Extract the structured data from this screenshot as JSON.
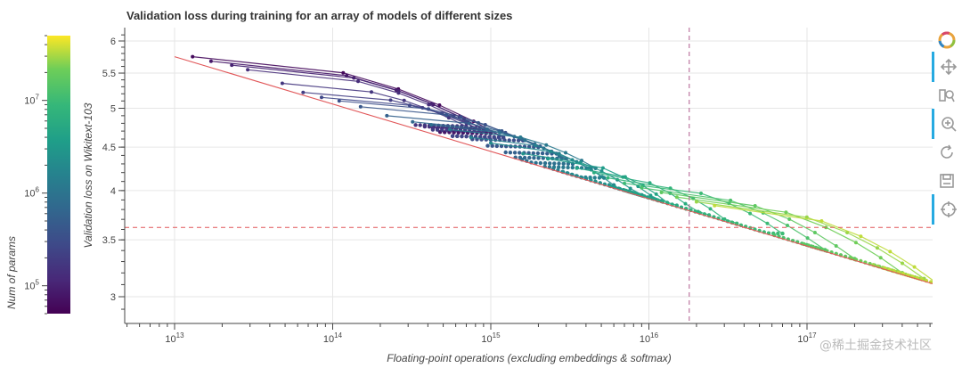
{
  "chart_data": {
    "type": "scatter",
    "title": "Validation loss during training for an array of models of different sizes",
    "xlabel": "Floating-point operations (excluding embeddings & softmax)",
    "ylabel": "Validation loss on Wikitext-103",
    "x_scale": "log",
    "y_scale": "log",
    "xlim": [
      5000000000000.0,
      7e+17
    ],
    "ylim": [
      2.8,
      6.2
    ],
    "x_tick_labels": [
      "10^13",
      "10^14",
      "10^15",
      "10^16",
      "10^17"
    ],
    "y_tick_labels": [
      "3",
      "3.5",
      "4",
      "4.5",
      "5",
      "5.5",
      "6"
    ],
    "colorbar": {
      "label": "Num of params",
      "scale": "log",
      "range": [
        50000,
        50000000
      ],
      "tick_labels": [
        "10^5",
        "10^6",
        "10^7"
      ],
      "colormap": "viridis"
    },
    "reference_lines": {
      "horizontal_loss": 3.62,
      "vertical_flops": 1.8e+16,
      "color": "#e15759"
    },
    "frontier_fit": {
      "x": [
        10000000000000.0,
        6.5e+17
      ],
      "y": [
        5.75,
        3.1
      ]
    },
    "models": [
      {
        "params": 60000,
        "x_start": 13000000000000.0,
        "y_start": 5.75,
        "x_end": 1200000000000000.0,
        "y_end": 4.62
      },
      {
        "params": 80000,
        "x_start": 17000000000000.0,
        "y_start": 5.68,
        "x_end": 1000000000000000.0,
        "y_end": 4.67
      },
      {
        "params": 100000,
        "x_start": 23000000000000.0,
        "y_start": 5.62,
        "x_end": 900000000000000.0,
        "y_end": 4.72
      },
      {
        "params": 130000,
        "x_start": 29000000000000.0,
        "y_start": 5.55,
        "x_end": 800000000000000.0,
        "y_end": 4.74
      },
      {
        "params": 160000,
        "x_start": 48000000000000.0,
        "y_start": 5.35,
        "x_end": 700000000000000.0,
        "y_end": 4.76
      },
      {
        "params": 200000,
        "x_start": 65000000000000.0,
        "y_start": 5.22,
        "x_end": 900000000000000.0,
        "y_end": 4.7
      },
      {
        "params": 260000,
        "x_start": 85000000000000.0,
        "y_start": 5.15,
        "x_end": 1200000000000000.0,
        "y_end": 4.62
      },
      {
        "params": 330000,
        "x_start": 110000000000000.0,
        "y_start": 5.1,
        "x_end": 1600000000000000.0,
        "y_end": 4.58
      },
      {
        "params": 420000,
        "x_start": 150000000000000.0,
        "y_start": 5.02,
        "x_end": 2000000000000000.0,
        "y_end": 4.5
      },
      {
        "params": 550000,
        "x_start": 220000000000000.0,
        "y_start": 4.9,
        "x_end": 2600000000000000.0,
        "y_end": 4.42
      },
      {
        "params": 700000,
        "x_start": 320000000000000.0,
        "y_start": 4.82,
        "x_end": 3000000000000000.0,
        "y_end": 4.36
      },
      {
        "params": 900000,
        "x_start": 420000000000000.0,
        "y_start": 4.78,
        "x_end": 3300000000000000.0,
        "y_end": 4.3
      },
      {
        "params": 1200000,
        "x_start": 550000000000000.0,
        "y_start": 4.72,
        "x_end": 4600000000000000.0,
        "y_end": 4.25
      },
      {
        "params": 1500000,
        "x_start": 750000000000000.0,
        "y_start": 4.62,
        "x_end": 5200000000000000.0,
        "y_end": 4.14
      },
      {
        "params": 2000000,
        "x_start": 1000000000000000.0,
        "y_start": 4.55,
        "x_end": 6000000000000000.0,
        "y_end": 4.06
      },
      {
        "params": 2600000,
        "x_start": 1600000000000000.0,
        "y_start": 4.42,
        "x_end": 9000000000000000.0,
        "y_end": 3.93
      },
      {
        "params": 3400000,
        "x_start": 2300000000000000.0,
        "y_start": 4.36,
        "x_end": 1.2e+16,
        "y_end": 3.85
      },
      {
        "params": 4500000,
        "x_start": 3500000000000000.0,
        "y_start": 4.25,
        "x_end": 1.5e+16,
        "y_end": 3.78
      },
      {
        "params": 6000000,
        "x_start": 4500000000000000.0,
        "y_start": 4.2,
        "x_end": 2.4e+16,
        "y_end": 3.65
      },
      {
        "params": 8000000,
        "x_start": 5500000000000000.0,
        "y_start": 4.14,
        "x_end": 3.6e+16,
        "y_end": 3.6
      },
      {
        "params": 10000000,
        "x_start": 7000000000000000.0,
        "y_start": 4.08,
        "x_end": 7e+16,
        "y_end": 3.56
      },
      {
        "params": 13000000,
        "x_start": 9000000000000000.0,
        "y_start": 4.03,
        "x_end": 1.3e+17,
        "y_end": 3.4
      },
      {
        "params": 17000000,
        "x_start": 1.2e+16,
        "y_start": 3.98,
        "x_end": 2e+17,
        "y_end": 3.32
      },
      {
        "params": 22000000,
        "x_start": 1.5e+16,
        "y_start": 3.93,
        "x_end": 4e+17,
        "y_end": 3.2
      },
      {
        "params": 28000000,
        "x_start": 2e+16,
        "y_start": 3.88,
        "x_end": 5.5e+17,
        "y_end": 3.15
      },
      {
        "params": 35000000,
        "x_start": 2.6e+16,
        "y_start": 3.84,
        "x_end": 6.5e+17,
        "y_end": 3.12
      }
    ]
  },
  "watermark": "@稀土掘金技术社区",
  "toolbar": {
    "items": [
      {
        "name": "bokeh-logo-icon",
        "label": "Bokeh"
      },
      {
        "name": "pan-tool-icon",
        "label": "Pan"
      },
      {
        "name": "box-zoom-tool-icon",
        "label": "Box Zoom"
      },
      {
        "name": "wheel-zoom-tool-icon",
        "label": "Wheel Zoom"
      },
      {
        "name": "reset-tool-icon",
        "label": "Reset"
      },
      {
        "name": "save-tool-icon",
        "label": "Save"
      },
      {
        "name": "hover-tool-icon",
        "label": "Hover"
      }
    ]
  }
}
